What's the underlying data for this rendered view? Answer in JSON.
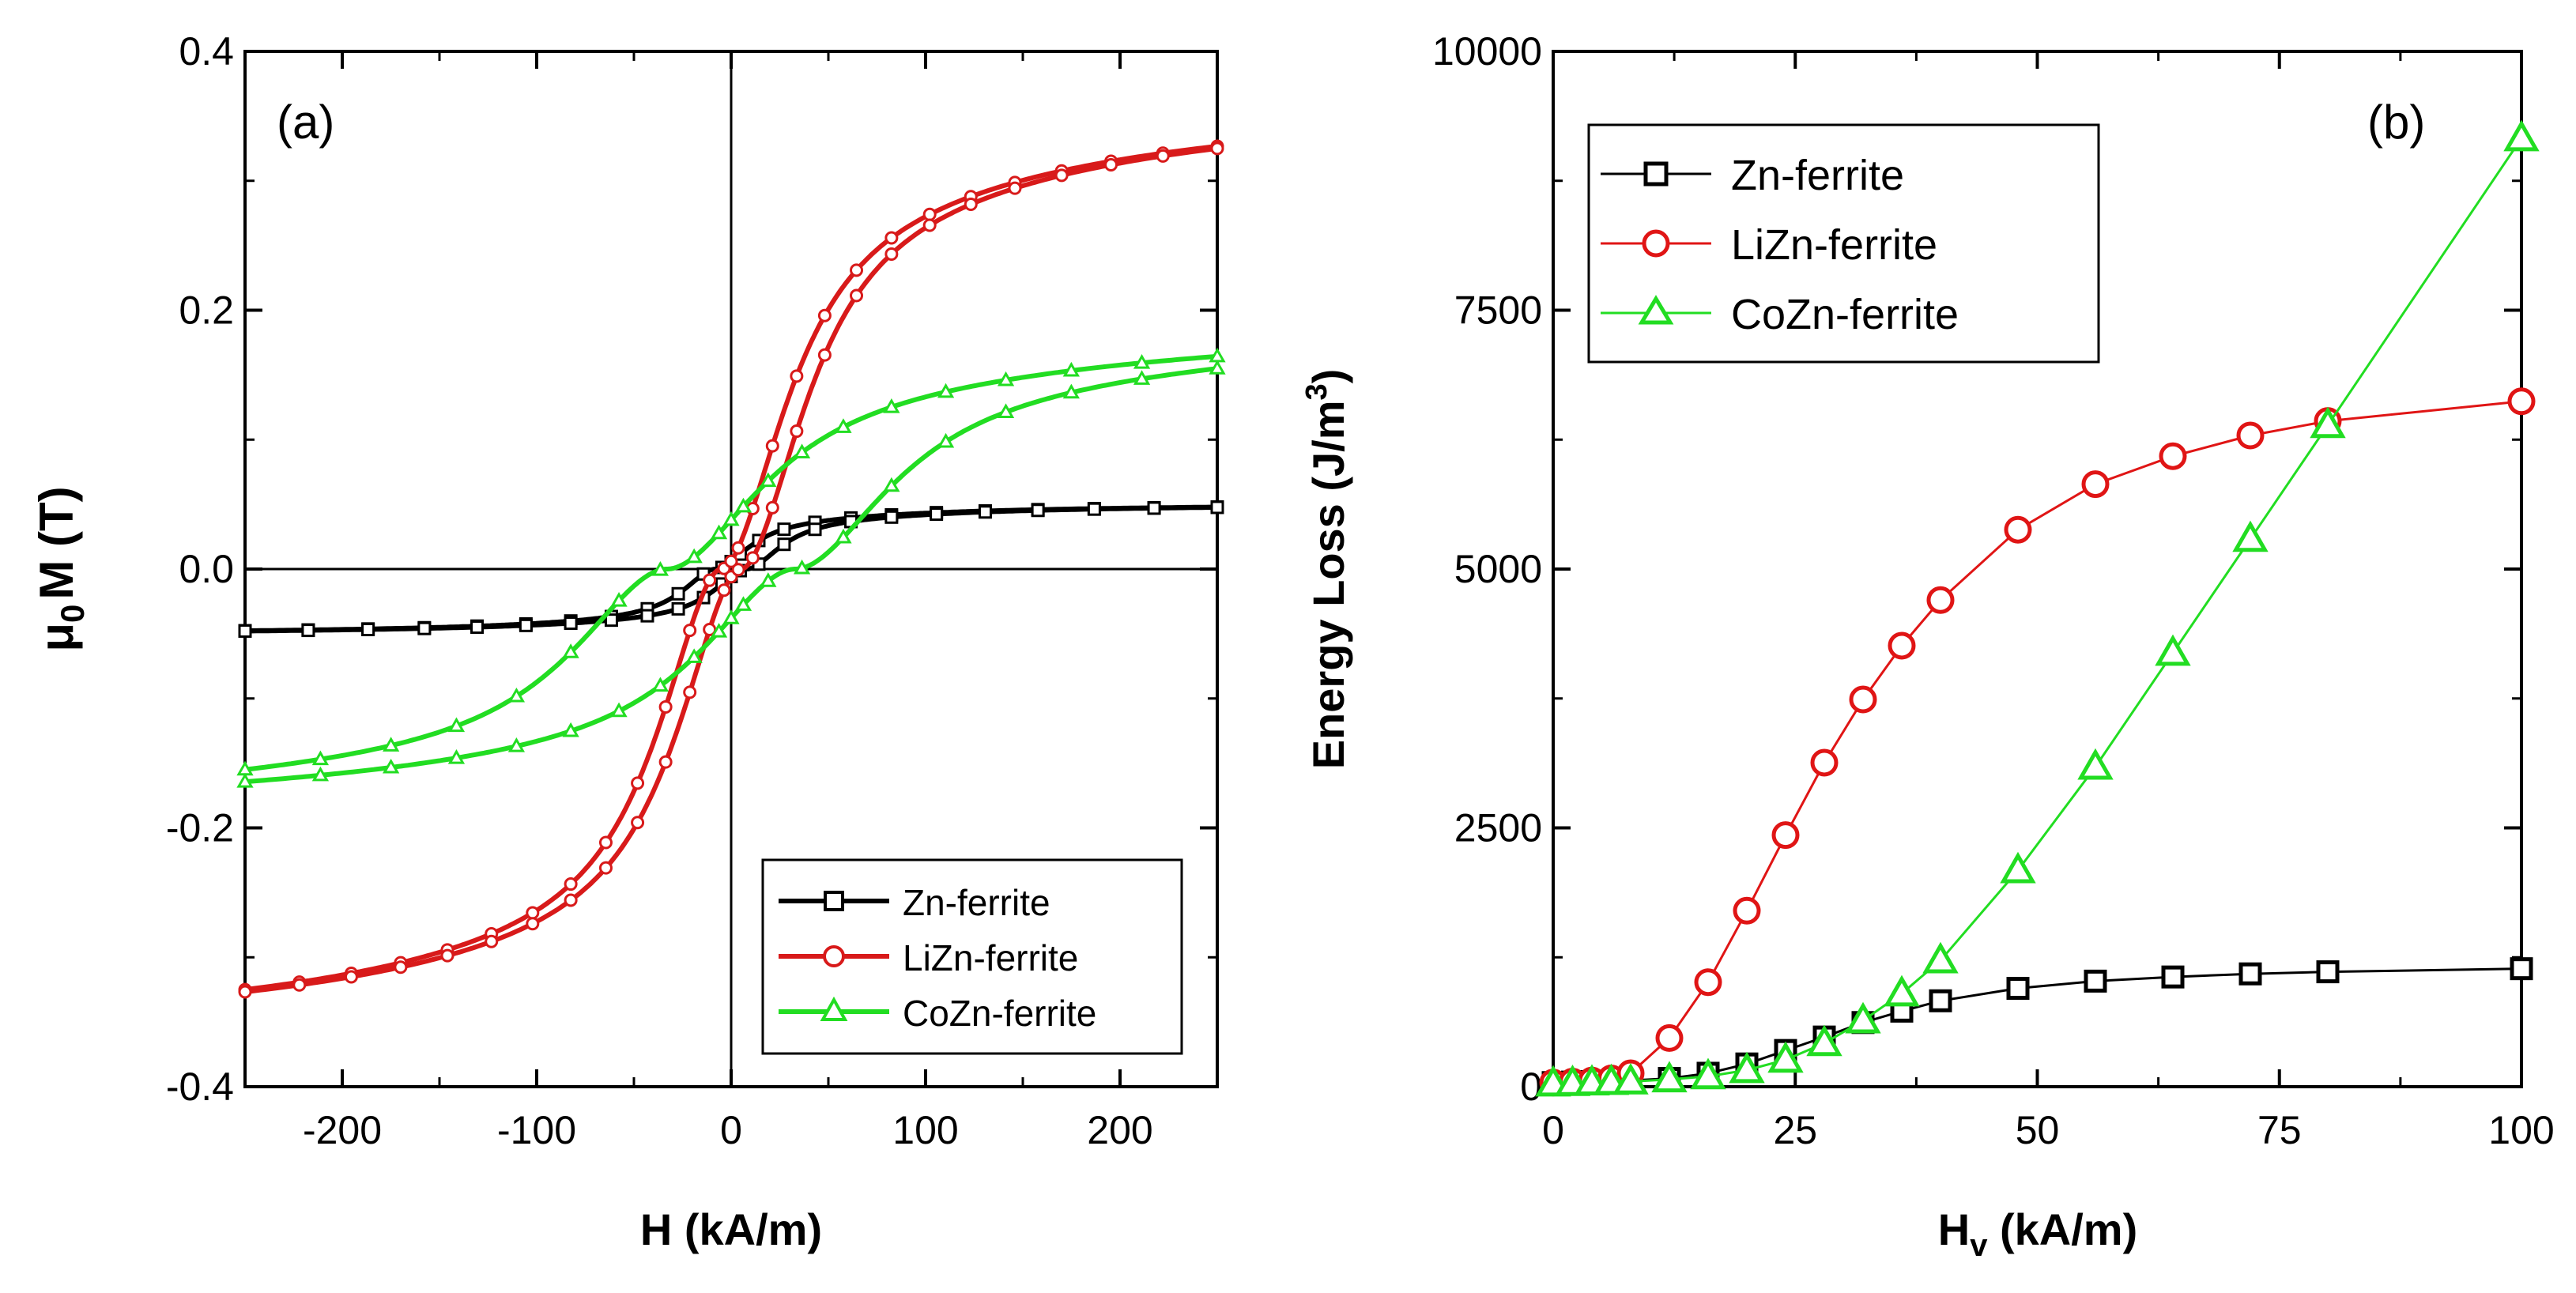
{
  "chart_data": [
    {
      "type": "line",
      "panel_label": "(a)",
      "xlabel": "H (kA/m)",
      "ylabel_main": "μ",
      "ylabel_sub": "0",
      "ylabel_rest": "M (T)",
      "xlim": [
        -250,
        250
      ],
      "ylim": [
        -0.4,
        0.4
      ],
      "xticks": [
        -200,
        -100,
        0,
        100,
        200
      ],
      "yticks": [
        -0.4,
        -0.2,
        0.0,
        0.2,
        0.4
      ],
      "ytick_labels": [
        "-0.4",
        "-0.2",
        "0.0",
        "0.2",
        "0.4"
      ],
      "zero_lines": true,
      "legend_position": "bottom-right",
      "series": [
        {
          "name": "Zn-ferrite",
          "color": "#000000",
          "marker": "square",
          "Ms": 0.052,
          "Hc": 8,
          "a": 18,
          "b": 22,
          "n": 12
        },
        {
          "name": "LiZn-ferrite",
          "color": "#d81a1a",
          "marker": "circle",
          "Ms": 0.378,
          "Hc": 5,
          "a": 35,
          "b": 40,
          "n": 14
        },
        {
          "name": "CoZn-ferrite",
          "color": "#22dd22",
          "marker": "triangle",
          "Ms": 0.205,
          "Hc": 33,
          "a": 50,
          "b": 70,
          "n": 10
        }
      ]
    },
    {
      "type": "line",
      "panel_label": "(b)",
      "xlabel_main": "H",
      "xlabel_sub": "v",
      "xlabel_rest": " (kA/m)",
      "ylabel_main": "Energy Loss (J/m",
      "ylabel_sup": "3",
      "ylabel_end": ")",
      "xlim": [
        0,
        100
      ],
      "ylim": [
        0,
        10000
      ],
      "xticks": [
        0,
        25,
        50,
        75,
        100
      ],
      "yticks": [
        0,
        2500,
        5000,
        7500,
        10000
      ],
      "legend_position": "top-left",
      "series": [
        {
          "name": "Zn-ferrite",
          "color": "#000000",
          "marker": "square",
          "x": [
            0,
            2,
            4,
            6,
            8,
            12,
            16,
            20,
            24,
            28,
            32,
            36,
            40,
            48,
            56,
            64,
            72,
            80,
            100
          ],
          "y": [
            40,
            45,
            50,
            55,
            60,
            80,
            130,
            220,
            350,
            480,
            620,
            730,
            830,
            950,
            1020,
            1060,
            1090,
            1110,
            1140
          ]
        },
        {
          "name": "LiZn-ferrite",
          "color": "#e01515",
          "marker": "circle",
          "x": [
            0,
            2,
            4,
            6,
            8,
            12,
            16,
            20,
            24,
            28,
            32,
            36,
            40,
            48,
            56,
            64,
            72,
            80,
            100
          ],
          "y": [
            40,
            50,
            60,
            80,
            130,
            470,
            1010,
            1700,
            2430,
            3130,
            3740,
            4260,
            4700,
            5380,
            5820,
            6090,
            6290,
            6430,
            6620
          ]
        },
        {
          "name": "CoZn-ferrite",
          "color": "#22dd22",
          "marker": "triangle",
          "x": [
            0,
            2,
            4,
            6,
            8,
            12,
            16,
            20,
            24,
            28,
            32,
            36,
            40,
            48,
            56,
            64,
            72,
            80,
            100
          ],
          "y": [
            30,
            35,
            40,
            45,
            50,
            70,
            100,
            160,
            260,
            420,
            640,
            900,
            1220,
            2090,
            3090,
            4190,
            5290,
            6390,
            9160
          ]
        }
      ]
    }
  ]
}
